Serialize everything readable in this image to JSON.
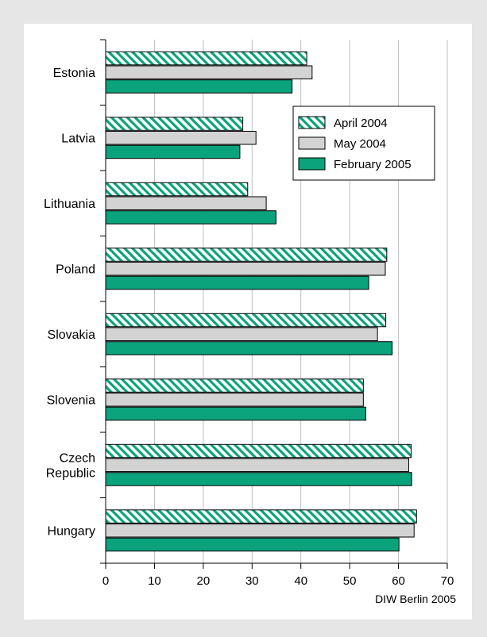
{
  "chart_data": {
    "type": "bar",
    "orientation": "horizontal",
    "categories": [
      "Estonia",
      "Latvia",
      "Lithuania",
      "Poland",
      "Slovakia",
      "Slovenia",
      "Czech Republic",
      "Hungary"
    ],
    "category_lines": [
      [
        "Estonia"
      ],
      [
        "Latvia"
      ],
      [
        "Lithuania"
      ],
      [
        "Poland"
      ],
      [
        "Slovakia"
      ],
      [
        "Slovenia"
      ],
      [
        "Czech",
        "Republic"
      ],
      [
        "Hungary"
      ]
    ],
    "series": [
      {
        "name": "April 2004",
        "pattern": "hatched",
        "color": "#0aa37b",
        "values": [
          41.2,
          28.1,
          29.1,
          57.6,
          57.4,
          52.8,
          62.6,
          63.7
        ]
      },
      {
        "name": "May 2004",
        "pattern": "solid",
        "color": "#d3d3d3",
        "values": [
          42.3,
          30.8,
          32.9,
          57.3,
          55.7,
          52.8,
          62.1,
          63.2
        ]
      },
      {
        "name": "February 2005",
        "pattern": "solid",
        "color": "#0aa37b",
        "values": [
          38.2,
          27.5,
          34.9,
          53.9,
          58.7,
          53.3,
          62.7,
          60.1
        ]
      }
    ],
    "xlim": [
      0,
      70
    ],
    "xticks": [
      0,
      10,
      20,
      30,
      40,
      50,
      60,
      70
    ],
    "grid": "vertical",
    "legend_position": "top-right",
    "title": "",
    "xlabel": "",
    "ylabel": ""
  },
  "source": "DIW Berlin 2005"
}
